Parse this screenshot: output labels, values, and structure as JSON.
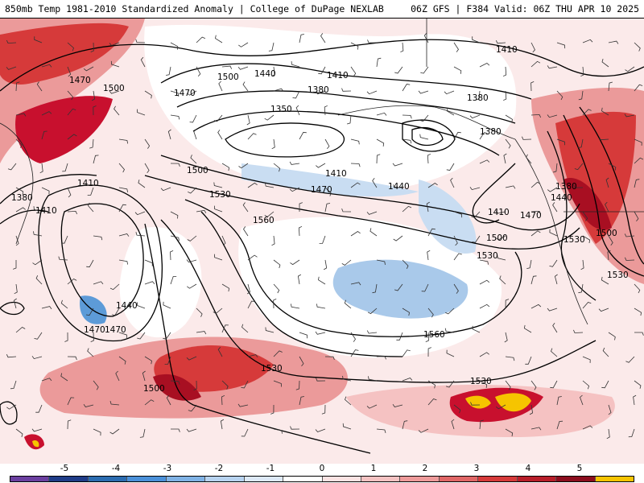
{
  "header": {
    "left_text": "850mb Temp 1981-2010 Standardized Anomaly | College of DuPage NEXLAB",
    "right_text": "06Z GFS | F384 Valid: 06Z THU APR 10 2025"
  },
  "contour_labels": [
    "1500",
    "1470",
    "1500",
    "1470",
    "1440",
    "1410",
    "1380",
    "1350",
    "1410",
    "1380",
    "1380",
    "1410",
    "1440",
    "1470",
    "1500",
    "1410",
    "1380",
    "1410",
    "1380",
    "1440",
    "1470",
    "1500",
    "1530",
    "1560",
    "1410",
    "1470",
    "1500",
    "1530",
    "1530",
    "1440",
    "1470",
    "1530",
    "1500",
    "1530",
    "1560",
    "1530"
  ],
  "colorbar": {
    "tick_labels": [
      "-5",
      "-4",
      "-3",
      "-2",
      "-1",
      "0",
      "1",
      "2",
      "3",
      "4",
      "5"
    ],
    "colors": [
      "#6b3fa0",
      "#1f3c88",
      "#2b6cb0",
      "#4a90d9",
      "#7fb2e5",
      "#b7d3f0",
      "#dde9f7",
      "#ffffff",
      "#fbe3e3",
      "#f5c2c2",
      "#ee9a9a",
      "#e06666",
      "#d63a3a",
      "#b81e2a",
      "#8c0d1e",
      "#f6c400"
    ]
  },
  "colors": {
    "map_background": "#fbeaea",
    "warm_anomaly": "#e06666",
    "strong_warm_anomaly": "#c8102e",
    "extreme_warm_anomaly": "#f6c400",
    "cool_anomaly": "#a9c9ea",
    "contour": "#000000"
  }
}
